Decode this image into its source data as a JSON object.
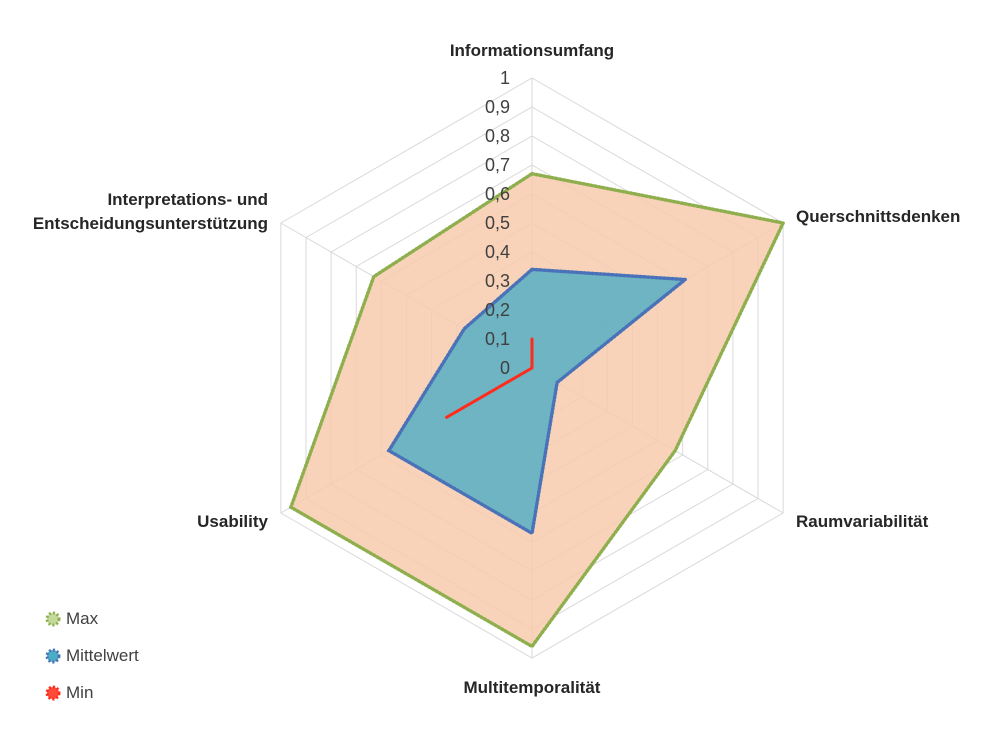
{
  "chart_data": {
    "type": "radar",
    "axes": [
      "Informationsumfang",
      "Querschnittsdenken",
      "Raumvariabilität",
      "Multitemporalität",
      "Usability",
      "Interpretations- und Entscheidungsunterstützung"
    ],
    "axis_label_lines": [
      [
        "Informationsumfang"
      ],
      [
        "Querschnittsdenken"
      ],
      [
        "Raumvariabilität"
      ],
      [
        "Multitemporalität"
      ],
      [
        "Usability"
      ],
      [
        "Interpretations- und",
        "Entscheidungsunterstützung"
      ]
    ],
    "ticks": [
      "0",
      "0,1",
      "0,2",
      "0,3",
      "0,4",
      "0,5",
      "0,6",
      "0,7",
      "0,8",
      "0,9",
      "1"
    ],
    "rlim": [
      0,
      1
    ],
    "series": [
      {
        "name": "Max",
        "values": [
          0.67,
          1.0,
          0.57,
          0.96,
          0.96,
          0.63
        ],
        "fill": "#f8cbad",
        "fill_opacity": 0.85,
        "stroke": "#8faf4e",
        "marker_fill": "#c5d99b"
      },
      {
        "name": "Mittelwert",
        "values": [
          0.34,
          0.61,
          0.1,
          0.57,
          0.57,
          0.27
        ],
        "fill": "#4bacc6",
        "fill_opacity": 0.8,
        "stroke": "#4a72b8",
        "marker_fill": "#4bacc6"
      },
      {
        "name": "Min",
        "values": [
          0.1,
          0,
          0,
          0,
          0.34,
          0
        ],
        "fill": "none",
        "fill_opacity": 0,
        "stroke": "#ff2b1c",
        "marker_fill": "#ff4a3a"
      }
    ],
    "grid": true,
    "legend_position": "bottom-left"
  }
}
